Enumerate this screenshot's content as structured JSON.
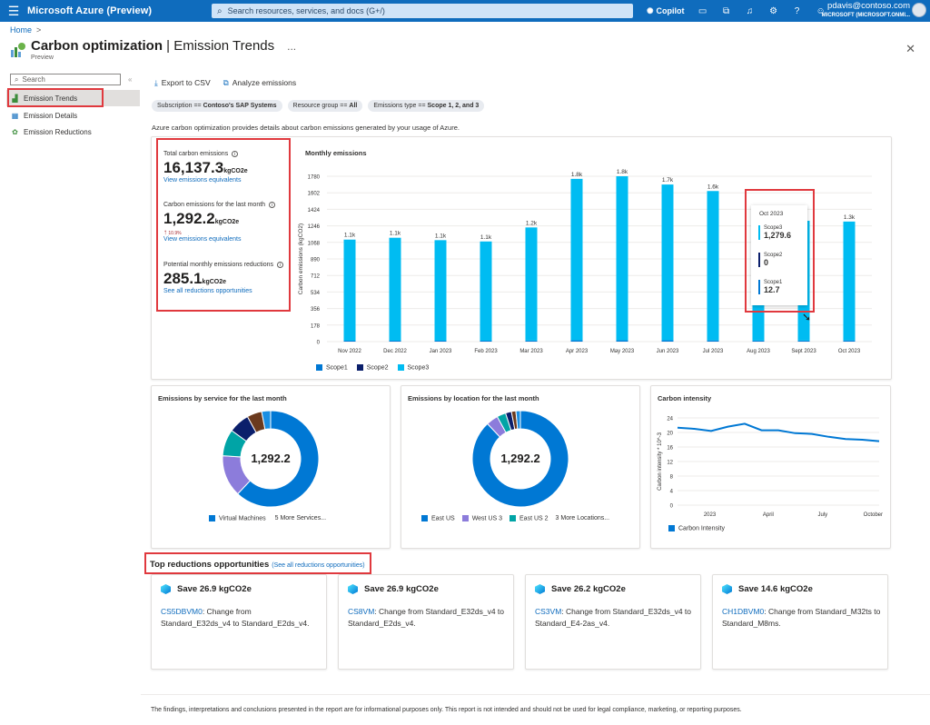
{
  "topbar": {
    "brand": "Microsoft Azure (Preview)",
    "search_placeholder": "Search resources, services, and docs (G+/)",
    "copilot_label": "Copilot",
    "account_name": "pdavis@contoso.com",
    "account_org": "MICROSOFT (MICROSOFT.ONMI...",
    "icons": [
      "menu-icon",
      "search-icon",
      "copilot-icon",
      "terminal-icon",
      "settings-directory-icon",
      "bell-icon",
      "gear-icon",
      "help-icon",
      "feedback-icon"
    ]
  },
  "breadcrumb": {
    "home": "Home",
    "sep": ">"
  },
  "header": {
    "title": "Carbon optimization",
    "subtitle": "Emission Trends",
    "sep": "|",
    "ellipsis": "...",
    "preview": "Preview"
  },
  "sidebar": {
    "search_placeholder": "Search",
    "collapse": "«",
    "items": [
      {
        "label": "Emission Trends",
        "icon": "trend-icon"
      },
      {
        "label": "Emission Details",
        "icon": "details-icon"
      },
      {
        "label": "Emission Reductions",
        "icon": "reduction-icon"
      }
    ]
  },
  "toolbar": {
    "export": "Export to CSV",
    "analyze": "Analyze emissions"
  },
  "filters": [
    {
      "key": "Subscription ==",
      "value": "Contoso's SAP Systems"
    },
    {
      "key": "Resource group ==",
      "value": "All"
    },
    {
      "key": "Emissions type ==",
      "value": "Scope 1, 2, and 3"
    }
  ],
  "description": "Azure carbon optimization provides details about carbon emissions generated by your usage of Azure.",
  "kpis": {
    "total_label": "Total carbon emissions",
    "total_value": "16,137.3",
    "total_unit": "kgCO2e",
    "total_link": "View emissions equivalents",
    "last_label": "Carbon emissions for the last month",
    "last_value": "1,292.2",
    "last_unit": "kgCO2e",
    "last_change": "10.9%",
    "last_link": "View emissions equivalents",
    "reduction_label": "Potential monthly emissions reductions",
    "reduction_value": "285.1",
    "reduction_unit": "kgCO2e",
    "reduction_link": "See all reductions opportunities"
  },
  "colors": {
    "scope1": "#0078d4",
    "scope2": "#0b1f6b",
    "scope3": "#00bcf2",
    "accent": "#0f6cbd",
    "highlight": "#e0393e"
  },
  "chart_data": [
    {
      "type": "bar",
      "title": "Monthly emissions",
      "ylabel": "Carbon emissions (kgCO2)",
      "categories": [
        "Nov 2022",
        "Dec 2022",
        "Jan 2023",
        "Feb 2023",
        "Mar 2023",
        "Apr 2023",
        "May 2023",
        "Jun 2023",
        "Jul 2023",
        "Aug 2023",
        "Sept 2023",
        "Oct 2023"
      ],
      "yticks": [
        0,
        178,
        356,
        534,
        712,
        890,
        1068,
        1246,
        1424,
        1602,
        1780
      ],
      "ylim": [
        0,
        1780
      ],
      "series": [
        {
          "name": "Scope1",
          "values": [
            10,
            10,
            10,
            10,
            11,
            14,
            14,
            14,
            13,
            11,
            11,
            12.7
          ]
        },
        {
          "name": "Scope2",
          "values": [
            0,
            0,
            0,
            0,
            0,
            0,
            0,
            0,
            0,
            0,
            0,
            0
          ]
        },
        {
          "name": "Scope3",
          "values": [
            1088,
            1108,
            1082,
            1068,
            1218,
            1738,
            1766,
            1677,
            1608,
            1215,
            1290,
            1279.6
          ]
        }
      ],
      "data_labels": [
        "1.1k",
        "1.1k",
        "1.1k",
        "1.1k",
        "1.2k",
        "1.8k",
        "1.8k",
        "1.7k",
        "1.6k",
        "1.2k",
        "",
        "1.3k"
      ],
      "tooltip": {
        "title": "Oct 2023",
        "rows": [
          {
            "label": "Scope3",
            "value": "1,279.6"
          },
          {
            "label": "Scope2",
            "value": "0"
          },
          {
            "label": "Scope1",
            "value": "12.7"
          }
        ]
      }
    },
    {
      "type": "pie",
      "title": "Emissions by service for the last month",
      "center_label": "1,292.2",
      "slices": [
        {
          "name": "Virtual Machines",
          "value": 0.62,
          "color": "#0078d4"
        },
        {
          "name": "5 More Services...",
          "value": 0.14,
          "color": "#8c7cdb"
        },
        {
          "name": "",
          "value": 0.09,
          "color": "#00a4a6"
        },
        {
          "name": "",
          "value": 0.07,
          "color": "#0b1f6b"
        },
        {
          "name": "",
          "value": 0.05,
          "color": "#6b3a1e"
        },
        {
          "name": "",
          "value": 0.03,
          "color": "#1a8fe3"
        }
      ],
      "legend": [
        "Virtual Machines",
        "5 More Services..."
      ]
    },
    {
      "type": "pie",
      "title": "Emissions by location for the last month",
      "center_label": "1,292.2",
      "slices": [
        {
          "name": "East US",
          "value": 0.88,
          "color": "#0078d4"
        },
        {
          "name": "West US 3",
          "value": 0.04,
          "color": "#8c7cdb"
        },
        {
          "name": "East US 2",
          "value": 0.03,
          "color": "#00a4a6"
        },
        {
          "name": "3 More Locations...",
          "value": 0.02,
          "color": "#0b1f6b"
        },
        {
          "name": "",
          "value": 0.015,
          "color": "#6b3a1e"
        },
        {
          "name": "",
          "value": 0.015,
          "color": "#1a8fe3"
        }
      ],
      "legend": [
        "East US",
        "West US 3",
        "East US 2",
        "3 More Locations..."
      ]
    },
    {
      "type": "line",
      "title": "Carbon intensity",
      "ylabel": "Carbon intensity * 10^-3",
      "yticks": [
        0,
        4,
        8,
        12,
        16,
        20,
        24
      ],
      "ylim": [
        0,
        24
      ],
      "xticks": [
        "2023",
        "April",
        "July",
        "October"
      ],
      "series": [
        {
          "name": "Carbon Intensity",
          "values": [
            21.3,
            21.0,
            20.4,
            21.6,
            22.4,
            20.6,
            20.6,
            19.8,
            19.6,
            18.8,
            18.2,
            18.0,
            17.6
          ]
        }
      ]
    }
  ],
  "opportunities": {
    "title": "Top reductions opportunities",
    "link": "(See all reductions opportunities)",
    "items": [
      {
        "save": "Save 26.9 kgCO2e",
        "vm": "CS5DBVM0",
        "text": ": Change from Standard_E32ds_v4 to Standard_E2ds_v4."
      },
      {
        "save": "Save 26.9 kgCO2e",
        "vm": "CS8VM",
        "text": ": Change from Standard_E32ds_v4 to Standard_E2ds_v4."
      },
      {
        "save": "Save 26.2 kgCO2e",
        "vm": "CS3VM",
        "text": ": Change from Standard_E32ds_v4 to Standard_E4-2as_v4."
      },
      {
        "save": "Save 14.6 kgCO2e",
        "vm": "CH1DBVM0",
        "text": ": Change from Standard_M32ts to Standard_M8ms."
      }
    ]
  },
  "footer": "The findings, interpretations and conclusions presented in the report are for informational purposes only. This report is not intended and should not be used for legal compliance, marketing, or reporting purposes."
}
